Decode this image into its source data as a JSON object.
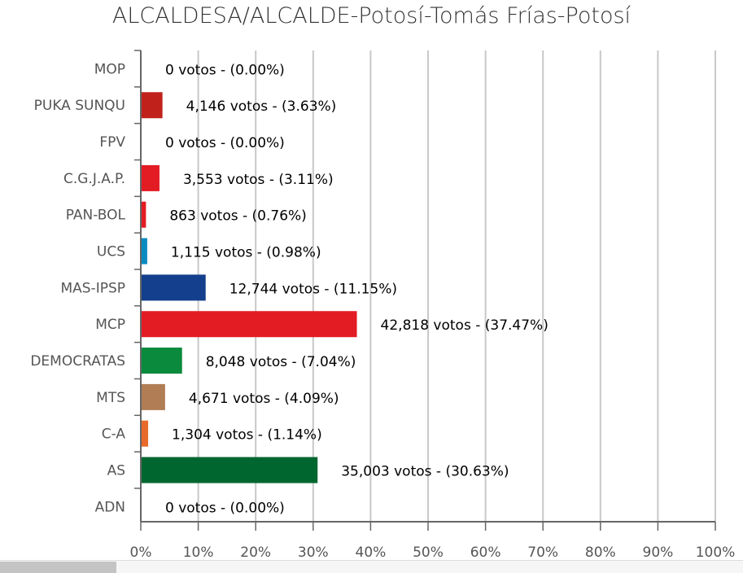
{
  "chart_data": {
    "type": "bar",
    "orientation": "horizontal",
    "title": "ALCALDESA/ALCALDE-Potosí-Tomás Frías-Potosí",
    "categories": [
      "MOP",
      "PUKA SUNQU",
      "FPV",
      "C.G.J.A.P.",
      "PAN-BOL",
      "UCS",
      "MAS-IPSP",
      "MCP",
      "DEMOCRATAS",
      "MTS",
      "C-A",
      "AS",
      "ADN"
    ],
    "votes": [
      0,
      4146,
      0,
      3553,
      863,
      1115,
      12744,
      42818,
      8048,
      4671,
      1304,
      35003,
      0
    ],
    "values": [
      0,
      3.63,
      0,
      3.11,
      0.76,
      0.98,
      11.15,
      37.47,
      7.04,
      4.09,
      1.14,
      30.63,
      0
    ],
    "labels": [
      "0 votos - (0.00%)",
      "4,146 votos - (3.63%)",
      "0 votos - (0.00%)",
      "3,553 votos - (3.11%)",
      "863 votos - (0.76%)",
      "1,115 votos - (0.98%)",
      "12,744 votos - (11.15%)",
      "42,818 votos - (37.47%)",
      "8,048 votos - (7.04%)",
      "4,671 votos - (4.09%)",
      "1,304 votos - (1.14%)",
      "35,003 votos - (30.63%)",
      "0 votos - (0.00%)"
    ],
    "colors": [
      "#cccccc",
      "#c0221b",
      "#cccccc",
      "#e31b23",
      "#e31b23",
      "#0a8bc0",
      "#143f8c",
      "#e31b23",
      "#0a8a3c",
      "#b07d55",
      "#e86a2a",
      "#00662f",
      "#cccccc"
    ],
    "xlim": [
      0,
      100
    ],
    "xticks": [
      "0%",
      "10%",
      "20%",
      "30%",
      "40%",
      "50%",
      "60%",
      "70%",
      "80%",
      "90%",
      "100%"
    ],
    "grid": true
  }
}
